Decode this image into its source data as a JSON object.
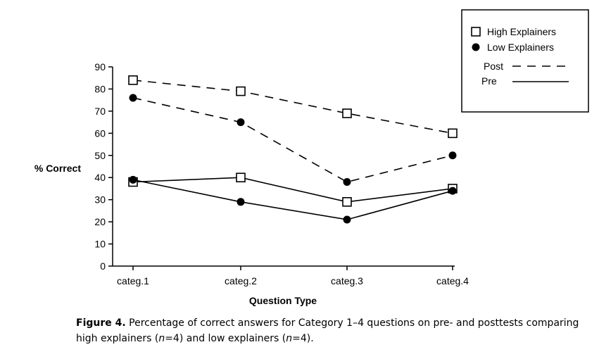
{
  "chart_data": {
    "type": "line",
    "xlabel": "Question Type",
    "ylabel": "% Correct",
    "categories": [
      "categ.1",
      "categ.2",
      "categ.3",
      "categ.4"
    ],
    "ylim": [
      0,
      90
    ],
    "yticks": [
      0,
      10,
      20,
      30,
      40,
      50,
      60,
      70,
      80,
      90
    ],
    "grid": false,
    "legend_position": "top-right",
    "legend": {
      "groups": [
        {
          "label": "High Explainers",
          "marker": "open-square"
        },
        {
          "label": "Low Explainers",
          "marker": "filled-circle"
        }
      ],
      "line_styles": [
        {
          "label": "Post",
          "style": "dashed"
        },
        {
          "label": "Pre",
          "style": "solid"
        }
      ]
    },
    "series": [
      {
        "group": "High Explainers",
        "test": "Post",
        "marker": "open-square",
        "style": "dashed",
        "values": [
          84,
          79,
          69,
          60
        ]
      },
      {
        "group": "Low Explainers",
        "test": "Post",
        "marker": "filled-circle",
        "style": "dashed",
        "values": [
          76,
          65,
          38,
          50
        ]
      },
      {
        "group": "High Explainers",
        "test": "Pre",
        "marker": "open-square",
        "style": "solid",
        "values": [
          38,
          40,
          29,
          35
        ]
      },
      {
        "group": "Low Explainers",
        "test": "Pre",
        "marker": "filled-circle",
        "style": "solid",
        "values": [
          39,
          29,
          21,
          34
        ]
      }
    ]
  },
  "caption": {
    "label": "Figure 4.",
    "text_1": " Percentage of correct answers for Category 1–4 questions on pre- and posttests comparing high explainers (",
    "n1_var": "n",
    "n1_val": "=4) and low explainers (",
    "n2_var": "n",
    "n2_val": "=4)."
  },
  "colors": {
    "ink": "#000000",
    "background": "#ffffff"
  }
}
